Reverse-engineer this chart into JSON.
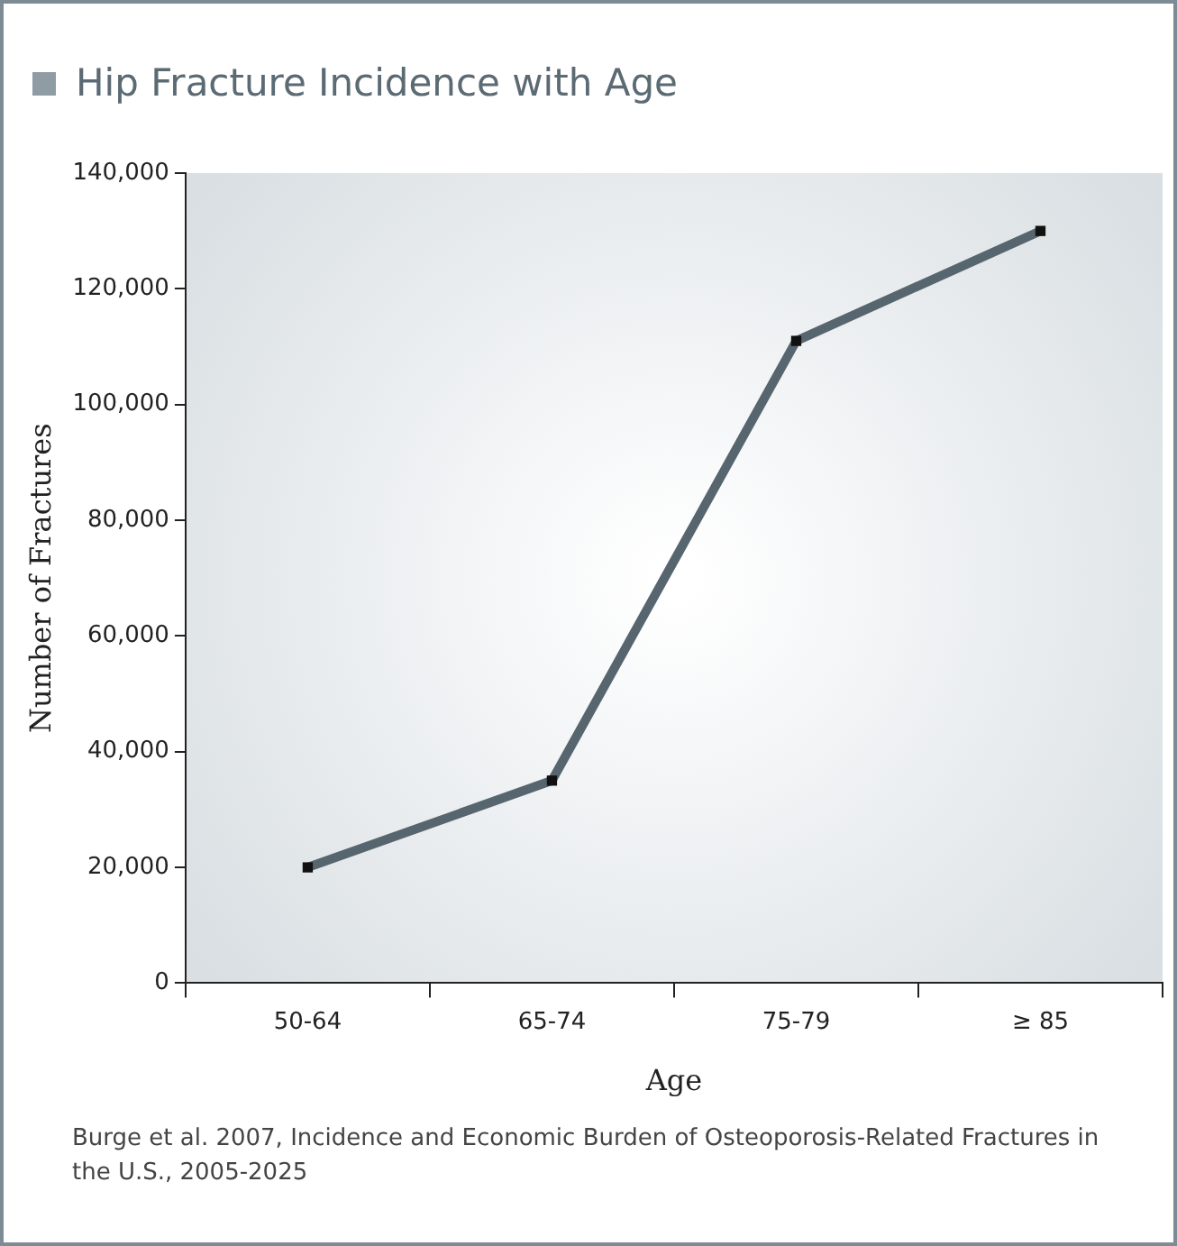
{
  "chart_data": {
    "type": "line",
    "title": "Hip Fracture Incidence with Age",
    "xlabel": "Age",
    "ylabel": "Number of Fractures",
    "categories": [
      "50-64",
      "65-74",
      "75-79",
      "≥ 85"
    ],
    "series": [
      {
        "color": "#56656e",
        "values": [
          20000,
          35000,
          111000,
          130000
        ]
      }
    ],
    "ylim": [
      0,
      140000
    ],
    "yticks": [
      0,
      {
        "value": 20000,
        "label": "20,000"
      },
      {
        "value": 40000,
        "label": "40,000"
      },
      {
        "value": 60000,
        "label": "60,000"
      },
      {
        "value": 80000,
        "label": "80,000"
      },
      {
        "value": 100000,
        "label": "100,000"
      },
      {
        "value": 120000,
        "label": "120,000"
      },
      {
        "value": 140000,
        "label": "140,000"
      }
    ],
    "grid": false,
    "legend": false,
    "marker": "square",
    "line_style": "solid",
    "annotations": [
      "Burge et al. 2007, Incidence and Economic Burden of Osteoporosis-Related Fractures in the U.S., 2005-2025"
    ]
  }
}
